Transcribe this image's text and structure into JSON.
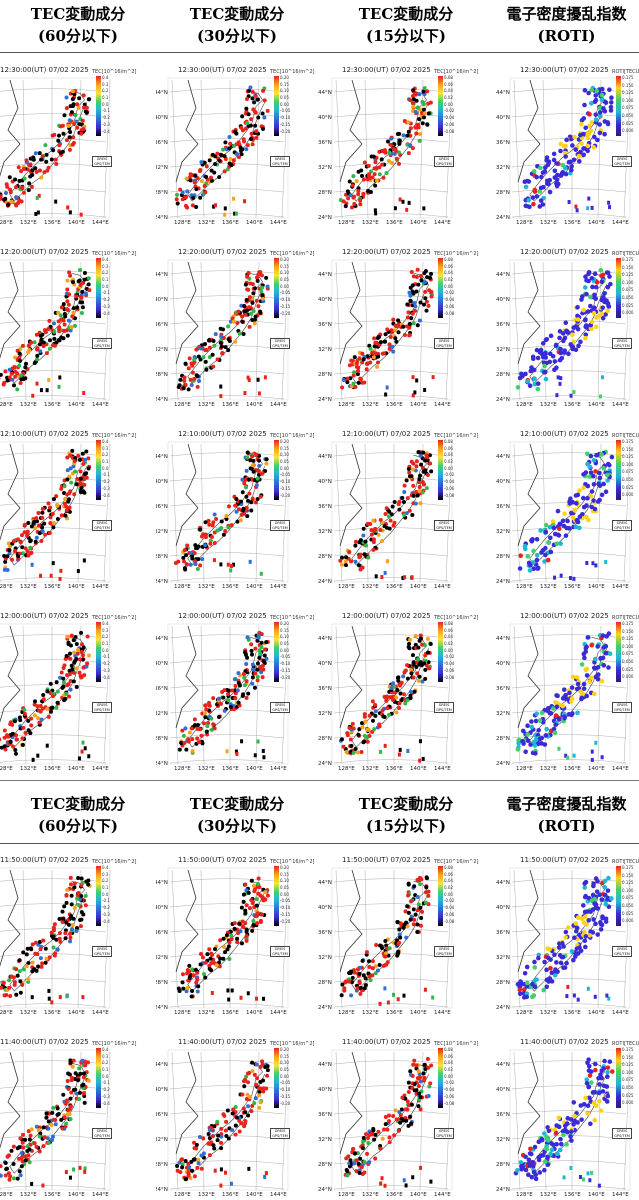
{
  "headers": {
    "col1_title": "TEC変動成分",
    "col1_sub": "(60分以下)",
    "col2_title": "TEC変動成分",
    "col2_sub": "(30分以下)",
    "col3_title": "TEC変動成分",
    "col3_sub": "(15分以下)",
    "col4_title": "電子密度擾乱指数",
    "col4_sub": "(ROTI)"
  },
  "rows": [
    {
      "timestamp": "12:30:00(UT) 07/02 2025"
    },
    {
      "timestamp": "12:20:00(UT) 07/02 2025"
    },
    {
      "timestamp": "12:10:00(UT) 07/02 2025"
    },
    {
      "timestamp": "12:00:00(UT) 07/02 2025"
    },
    {
      "timestamp": "11:50:00(UT) 07/02 2025"
    },
    {
      "timestamp": "11:40:00(UT) 07/02 2025"
    }
  ],
  "columns": [
    {
      "kind": "tec",
      "cbar_title": "TEC[10^16/m^2]",
      "cbar_labels": [
        "0.4",
        "0.3",
        "0.2",
        "0.1",
        "0.0",
        "-0.1",
        "-0.2",
        "-0.3",
        "-0.4"
      ]
    },
    {
      "kind": "tec",
      "cbar_title": "TEC[10^16/m^2]",
      "cbar_labels": [
        "0.20",
        "0.15",
        "0.10",
        "0.05",
        "0.00",
        "-0.05",
        "-0.10",
        "-0.15",
        "-0.20"
      ]
    },
    {
      "kind": "tec",
      "cbar_title": "TEC[10^16/m^2]",
      "cbar_labels": [
        "0.08",
        "0.06",
        "0.04",
        "0.02",
        "0.00",
        "-0.02",
        "-0.04",
        "-0.06",
        "-0.08"
      ]
    },
    {
      "kind": "roti",
      "cbar_title": "ROTI[TECU/min]",
      "cbar_labels": [
        "0.175",
        "0.150",
        "0.125",
        "0.100",
        "0.075",
        "0.050",
        "0.025",
        "0.000"
      ]
    }
  ],
  "source_label": "GREIS GPS/TEM",
  "lat_labels": [
    "44°N",
    "40°N",
    "36°N",
    "32°N",
    "28°N",
    "24°N"
  ],
  "lon_labels": [
    "128°E",
    "132°E",
    "136°E",
    "140°E",
    "144°E"
  ],
  "colors": {
    "tec_positive": "#e8231c",
    "tec_negative": "#000000",
    "tec_mid": "#2fb84a",
    "roti_low": "#3a2bd6",
    "roti_high": "#ffd21a"
  }
}
